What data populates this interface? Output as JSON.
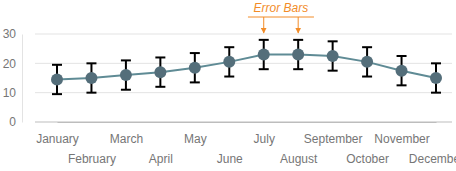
{
  "chart_data": {
    "type": "line",
    "categories": [
      "January",
      "February",
      "March",
      "April",
      "May",
      "June",
      "July",
      "August",
      "September",
      "October",
      "November",
      "December"
    ],
    "values": [
      14.5,
      15,
      16,
      17,
      18.5,
      20.5,
      23,
      23,
      22.5,
      20.5,
      17.5,
      15
    ],
    "errors": [
      5,
      5,
      5,
      5,
      5,
      5,
      5,
      5,
      5,
      5,
      5,
      5
    ],
    "color": "#5f8b95",
    "marker": "circle",
    "ylim": [
      0,
      30
    ],
    "yticks": [
      0,
      10,
      20,
      30
    ],
    "grid": true,
    "annotation": "Error Bars"
  }
}
